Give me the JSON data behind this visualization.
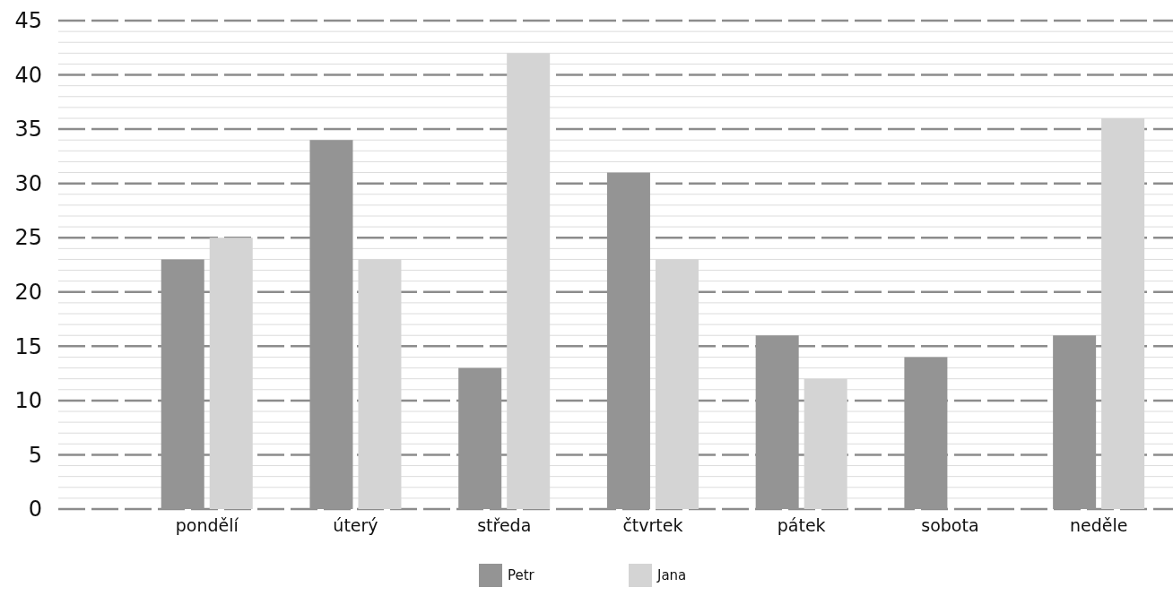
{
  "chart_data": {
    "type": "bar",
    "categories": [
      null,
      "pondělí",
      "úterý",
      "středa",
      "čtvrtek",
      "pátek",
      "sobota",
      "neděle"
    ],
    "series": [
      {
        "name": "Petr",
        "color": "#949494",
        "values": [
          null,
          23,
          34,
          13,
          31,
          16,
          14,
          16
        ]
      },
      {
        "name": "Jana",
        "color": "#d4d4d4",
        "values": [
          null,
          25,
          23,
          42,
          23,
          12,
          null,
          36
        ]
      }
    ],
    "ylim": [
      0,
      45
    ],
    "yticks": [
      0,
      {
        "value": 1,
        "label": null
      },
      {
        "value": 2,
        "label": null
      },
      {
        "value": 3,
        "label": null
      },
      {
        "value": 4,
        "label": null
      },
      5,
      {
        "value": 6,
        "label": null
      },
      {
        "value": 7,
        "label": null
      },
      {
        "value": 8,
        "label": null
      },
      {
        "value": 9,
        "label": null
      },
      10,
      {
        "value": 11,
        "label": null
      },
      {
        "value": 12,
        "label": null
      },
      {
        "value": 13,
        "label": null
      },
      {
        "value": 14,
        "label": null
      },
      15,
      {
        "value": 16,
        "label": null
      },
      {
        "value": 17,
        "label": null
      },
      {
        "value": 18,
        "label": null
      },
      {
        "value": 19,
        "label": null
      },
      20,
      {
        "value": 21,
        "label": null
      },
      {
        "value": 22,
        "label": null
      },
      {
        "value": 23,
        "label": null
      },
      {
        "value": 24,
        "label": null
      },
      25,
      {
        "value": 26,
        "label": null
      },
      {
        "value": 27,
        "label": null
      },
      {
        "value": 28,
        "label": null
      },
      {
        "value": 29,
        "label": null
      },
      30,
      {
        "value": 31,
        "label": null
      },
      {
        "value": 32,
        "label": null
      },
      {
        "value": 33,
        "label": null
      },
      {
        "value": 34,
        "label": null
      },
      35,
      {
        "value": 36,
        "label": null
      },
      {
        "value": 37,
        "label": null
      },
      {
        "value": 38,
        "label": null
      },
      {
        "value": 39,
        "label": null
      },
      40,
      {
        "value": 41,
        "label": null
      },
      {
        "value": 42,
        "label": null
      },
      {
        "value": 43,
        "label": null
      },
      {
        "value": 44,
        "label": null
      },
      45
    ],
    "grid": "y",
    "legend": "bottom"
  }
}
